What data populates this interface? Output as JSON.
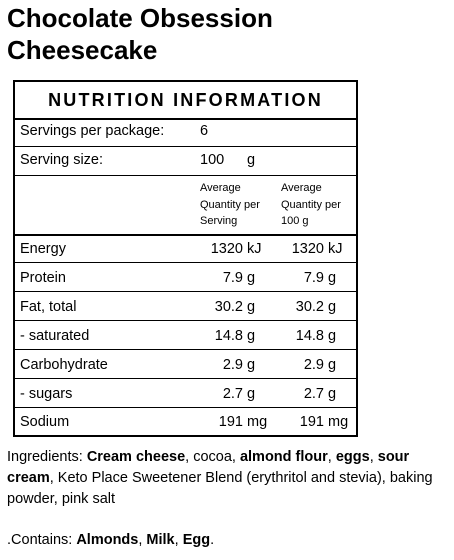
{
  "product": {
    "title_line1": "Chocolate Obsession",
    "title_line2": "Cheesecake"
  },
  "panel": {
    "heading": "NUTRITION INFORMATION",
    "servings_label": "Servings per package:",
    "servings_value": "6",
    "serving_size_label": "Serving size:",
    "serving_size_value": "100",
    "serving_size_unit": "g",
    "col_serving_line1": "Average",
    "col_serving_line2": "Quantity per",
    "col_serving_line3": "Serving",
    "col_100g_line1": "Average",
    "col_100g_line2": "Quantity per",
    "col_100g_line3": "100 g",
    "rows": [
      {
        "label": "Energy",
        "serving": "1320",
        "serving_unit": "kJ",
        "per100": "1320",
        "per100_unit": "kJ"
      },
      {
        "label": "Protein",
        "serving": "7.9",
        "serving_unit": "g",
        "per100": "7.9",
        "per100_unit": "g"
      },
      {
        "label": "Fat, total",
        "serving": "30.2",
        "serving_unit": "g",
        "per100": "30.2",
        "per100_unit": "g"
      },
      {
        "label": "- saturated",
        "serving": "14.8",
        "serving_unit": "g",
        "per100": "14.8",
        "per100_unit": "g"
      },
      {
        "label": "Carbohydrate",
        "serving": "2.9",
        "serving_unit": "g",
        "per100": "2.9",
        "per100_unit": "g"
      },
      {
        "label": "- sugars",
        "serving": "2.7",
        "serving_unit": "g",
        "per100": "2.7",
        "per100_unit": "g"
      },
      {
        "label": "Sodium",
        "serving": "191",
        "serving_unit": "mg",
        "per100": "191",
        "per100_unit": "mg"
      }
    ]
  },
  "ingredients": {
    "label": "Ingredients: ",
    "i1": "Cream cheese",
    "s1": ", cocoa, ",
    "i2": "almond flour",
    "s2": ", ",
    "i3": "eggs",
    "s3": ", ",
    "i4": "sour cream",
    "s4": ", Keto Place Sweetener Blend (erythritol and stevia), baking powder, pink salt"
  },
  "contains": {
    "label": ".Contains: ",
    "a1": "Almonds",
    "s1": ", ",
    "a2": "Milk",
    "s2": ", ",
    "a3": "Egg",
    "s3": "."
  }
}
